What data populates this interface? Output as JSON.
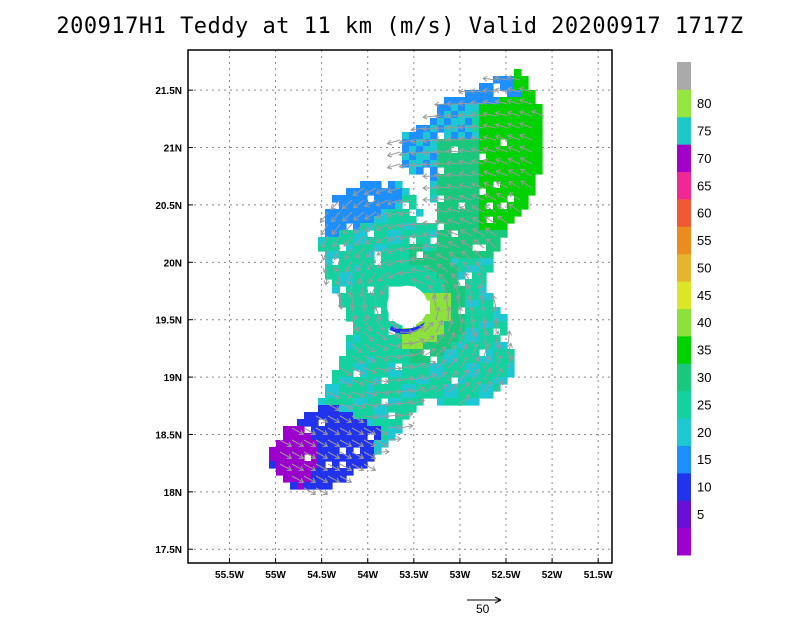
{
  "chart_data": {
    "type": "vector-field",
    "title": "200917H1 Teddy at 11 km (m/s) Valid 20200917 1717Z",
    "x_ticks": [
      "55.5W",
      "55W",
      "54.5W",
      "54W",
      "53.5W",
      "53W",
      "52.5W",
      "52W",
      "51.5W"
    ],
    "y_ticks": [
      "21.5N",
      "21N",
      "20.5N",
      "20N",
      "19.5N",
      "19N",
      "18.5N",
      "18N",
      "17.5N"
    ],
    "xlim": [
      -55.95,
      -51.35
    ],
    "ylim": [
      17.38,
      21.85
    ],
    "grid": true,
    "colorbar": {
      "labels": [
        "5",
        "10",
        "15",
        "20",
        "25",
        "30",
        "35",
        "40",
        "45",
        "50",
        "55",
        "60",
        "65",
        "70",
        "75",
        "80"
      ],
      "colors": [
        "#9b00cc",
        "#6a0fd6",
        "#2233ee",
        "#1e8fff",
        "#1ec8d2",
        "#14d2a0",
        "#19c87d",
        "#00d200",
        "#8ce13c",
        "#dce628",
        "#e6b42d",
        "#eb8c1e",
        "#f05a32",
        "#f02896",
        "#a000c8",
        "#1ec8c8",
        "#96e641",
        "#aaaaaa"
      ]
    },
    "reference_vector": {
      "label": "50",
      "speed": 50
    },
    "storm_center": {
      "lon": -53.57,
      "lat": 19.62
    },
    "eye_radius_deg": 0.22
  }
}
